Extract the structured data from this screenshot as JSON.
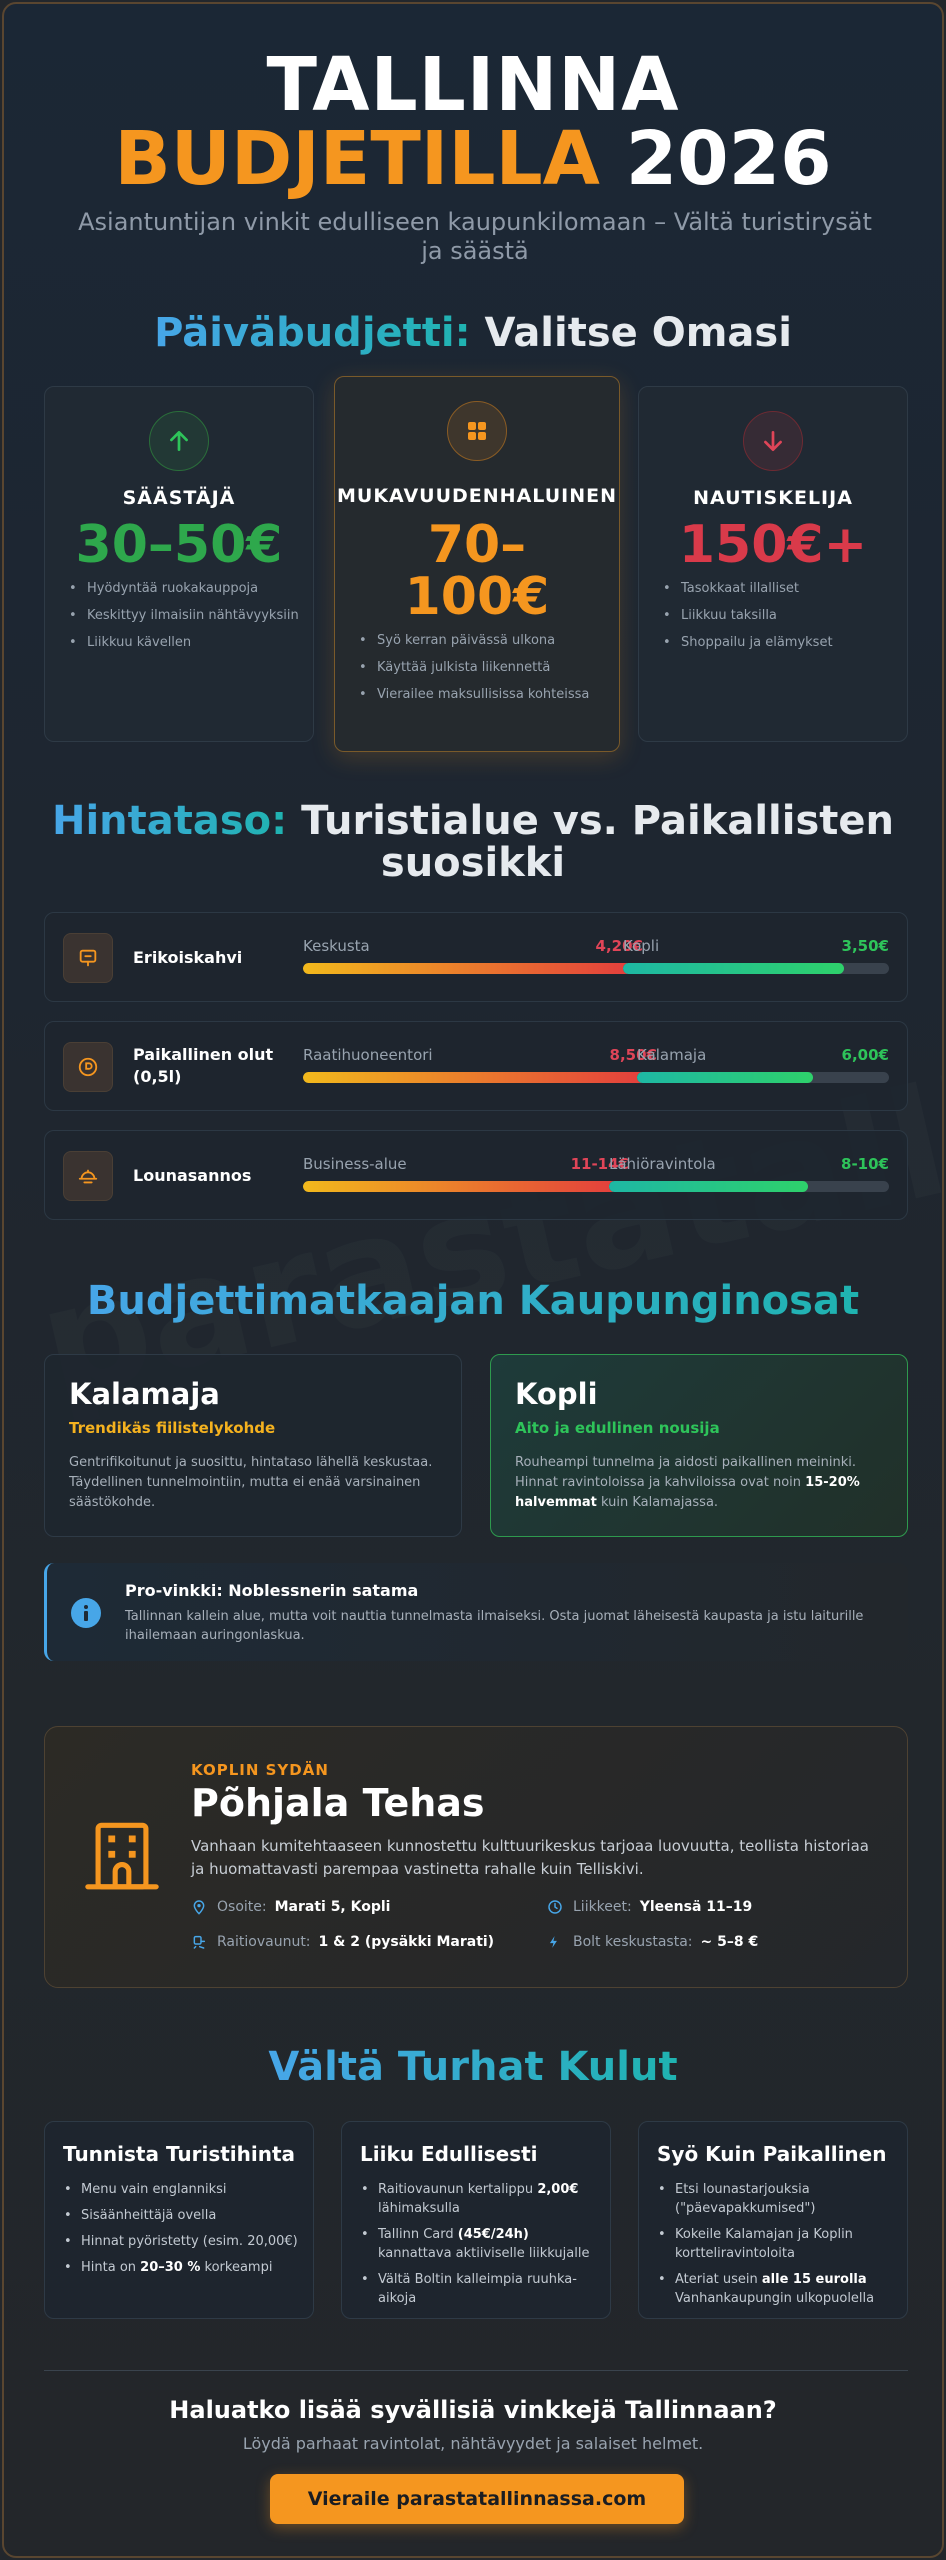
{
  "header": {
    "title_line1": "TALLINNA",
    "title_line2_highlight": "BUDJETILLA",
    "title_line2_rest": "2026",
    "subtitle": "Asiantuntijan vinkit edulliseen kaupunkilomaan – Vältä turistirysät ja säästä"
  },
  "watermark": "parastatallinnassa",
  "budget": {
    "heading_highlight": "Päiväbudjetti:",
    "heading_rest": "Valitse Omasi",
    "cards": [
      {
        "icon": "arrow-up-icon",
        "name": "SÄÄSTÄJÄ",
        "price": "30–50€",
        "color": "#2ea84c",
        "items": [
          "Hyödyntää ruokakauppoja",
          "Keskittyy ilmaisiin nähtävyyksiin",
          "Liikkuu kävellen"
        ]
      },
      {
        "icon": "grid-icon",
        "name": "MUKAVUUDENHALUINEN",
        "price_line1": "70–",
        "price_line2": "100€",
        "color": "#f5961f",
        "items": [
          "Syö kerran päivässä ulkona",
          "Käyttää julkista liikennettä",
          "Vierailee maksullisissa kohteissa"
        ]
      },
      {
        "icon": "arrow-down-icon",
        "name": "NAUTISKELIJA",
        "price": "150€+",
        "color": "#d93a4a",
        "items": [
          "Tasokkaat illalliset",
          "Liikkuu taksilla",
          "Shoppailu ja elämykset"
        ]
      }
    ]
  },
  "prices": {
    "heading_highlight": "Hintataso:",
    "heading_line1_rest": "Turistialue vs. Paikallisten",
    "heading_line2": "suosikki",
    "rows": [
      {
        "icon": "coffee-icon",
        "label": "Erikoiskahvi",
        "tourist_label": "Keskusta",
        "tourist_value": "4,20€",
        "tourist_fill": 1.0,
        "local_label": "Kopli",
        "local_value": "3,50€",
        "local_fill": 0.83
      },
      {
        "icon": "beer-icon",
        "label_line1": "Paikallinen olut",
        "label_line2": "(0,5l)",
        "tourist_label": "Raatihuoneentori",
        "tourist_value": "8,50€",
        "tourist_fill": 1.0,
        "local_label": "Kalamaja",
        "local_value": "6,00€",
        "local_fill": 0.7
      },
      {
        "icon": "dish-icon",
        "label": "Lounasannos",
        "tourist_label": "Business-alue",
        "tourist_value": "11-14€",
        "tourist_fill": 1.0,
        "local_label": "Lähiöravintola",
        "local_value": "8-10€",
        "local_fill": 0.71
      }
    ]
  },
  "districts": {
    "heading": "Budjettimatkaajan Kaupunginosat",
    "items": [
      {
        "name": "Kalamaja",
        "tagline": "Trendikäs fiilistelykohde",
        "tag_color": "#f5b21f",
        "text": "Gentrifikoitunut ja suosittu, hintataso lähellä keskustaa. Täydellinen tunnelmointiin, mutta ei enää varsinainen säästökohde."
      },
      {
        "name": "Kopli",
        "tagline": "Aito ja edullinen nousija",
        "tag_color": "#2ec45a",
        "text_before": "Rouheampi tunnelma ja aidosti paikallinen meininki. Hinnat ravintoloissa ja kahviloissa ovat noin ",
        "text_bold": "15-20% halvemmat",
        "text_after": " kuin Kalamajassa."
      }
    ]
  },
  "tip": {
    "title": "Pro-vinkki: Noblessnerin satama",
    "text": "Tallinnan kallein alue, mutta voit nauttia tunnelmasta ilmaiseksi. Osta juomat läheisestä kaupasta ja istu laiturille ihailemaan auringonlaskua."
  },
  "feature": {
    "eyebrow": "KOPLIN SYDÄN",
    "title": "Põhjala Tehas",
    "text": "Vanhaan kumitehtaaseen kunnostettu kulttuurikeskus tarjoaa luovuutta, teollista historiaa ja huomattavasti parempaa vastinetta rahalle kuin Telliskivi.",
    "address_label": "Osoite:",
    "address_value": "Marati 5, Kopli",
    "hours_label": "Liikkeet:",
    "hours_value": "Yleensä 11–19",
    "tram_label": "Raitiovaunut:",
    "tram_value": "1 & 2 (pysäkki Marati)",
    "bolt_label": "Bolt keskustasta:",
    "bolt_value": "~ 5–8 €"
  },
  "avoid": {
    "heading": "Vältä Turhat Kulut",
    "cols": [
      {
        "title": "Tunnista Turistihinta",
        "items": [
          {
            "text": "Menu vain englanniksi"
          },
          {
            "text": "Sisäänheittäjä ovella"
          },
          {
            "text": "Hinnat pyöristetty (esim. 20,00€)"
          },
          {
            "before": "Hinta on ",
            "bold": "20–30 %",
            "after": " korkeampi"
          }
        ]
      },
      {
        "title": "Liiku Edullisesti",
        "items": [
          {
            "before": "Raitiovaunun kertalippu ",
            "bold": "2,00€",
            "after": " lähimaksulla"
          },
          {
            "before": "Tallinn Card ",
            "bold": "(45€/24h)",
            "after": " kannattava aktiiviselle liikkujalle"
          },
          {
            "text": "Vältä Boltin kalleimpia ruuhka-aikoja"
          }
        ]
      },
      {
        "title": "Syö Kuin Paikallinen",
        "items": [
          {
            "text": "Etsi lounastarjouksia (\"päevapakkumised\")"
          },
          {
            "text": "Kokeile Kalamajan ja Koplin kortteliravintoloita"
          },
          {
            "before": "Ateriat usein ",
            "bold": "alle 15 eurolla",
            "after": " Vanhankaupungin ulkopuolella"
          }
        ]
      }
    ]
  },
  "cta": {
    "title": "Haluatko lisää syvällisiä vinkkejä Tallinnaan?",
    "subtitle": "Löydä parhaat ravintolat, nähtävyydet ja salaiset helmet.",
    "button": "Vieraile parastatallinnassa.com"
  }
}
